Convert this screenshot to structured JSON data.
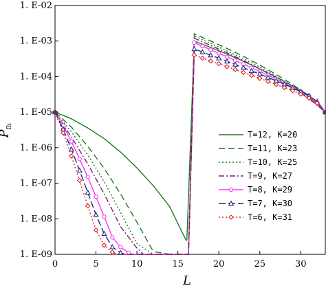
{
  "chart_data": {
    "type": "line",
    "title": "",
    "xlabel": "L",
    "ylabel": "P",
    "ylabel_sub": "fh",
    "xlim": [
      0,
      33
    ],
    "ylim": [
      1e-09,
      0.01
    ],
    "yscale": "log",
    "x_ticks": [
      "0",
      "5",
      "10",
      "15",
      "20",
      "25",
      "30"
    ],
    "y_ticks": [
      "1. E-09",
      "1. E-08",
      "1. E-07",
      "1. E-06",
      "1. E-05",
      "1. E-04",
      "1. E-03",
      "1. E-02"
    ],
    "grid": false,
    "legend_position": "right",
    "series": [
      {
        "name": "T=12, K=20",
        "color": "#1a7a1a",
        "dash": "solid",
        "marker": "none",
        "x": [
          0,
          2,
          4,
          6,
          8,
          10,
          12,
          14,
          16,
          16.1,
          17,
          19,
          21,
          23,
          25,
          27,
          29,
          31,
          33
        ],
        "y": [
          1e-05,
          6.5e-06,
          3.6e-06,
          1.8e-06,
          7.5e-07,
          2.7e-07,
          8.5e-08,
          2.2e-08,
          2.5e-09,
          2.5e-09,
          0.001,
          0.00066,
          0.00043,
          0.00027,
          0.000165,
          9.6e-05,
          5.5e-05,
          3e-05,
          1e-05
        ]
      },
      {
        "name": "T=11, K=23",
        "color": "#1a7a1a",
        "dash": "long",
        "marker": "none",
        "x": [
          0,
          2,
          4,
          6,
          8,
          10,
          12,
          14,
          16.3,
          16.3,
          17,
          19,
          21,
          23,
          25,
          27,
          29,
          31,
          33
        ],
        "y": [
          1e-05,
          3.8e-06,
          1.1e-06,
          2.6e-07,
          5e-08,
          8e-09,
          1.2e-09,
          1e-09,
          1e-09,
          1e-09,
          0.0016,
          0.001,
          0.00062,
          0.00037,
          0.00021,
          0.000115,
          6e-05,
          2.9e-05,
          1e-05
        ]
      },
      {
        "name": "T=10, K=25",
        "color": "#1a7a1a",
        "dash": "dotted",
        "marker": "none",
        "x": [
          0,
          2,
          4,
          6,
          8,
          10,
          12,
          14,
          16.3,
          16.3,
          17,
          19,
          21,
          23,
          25,
          27,
          29,
          31,
          33
        ],
        "y": [
          1e-05,
          2.8e-06,
          6.3e-07,
          1.1e-07,
          1.5e-08,
          2e-09,
          1e-09,
          1e-09,
          1e-09,
          1e-09,
          0.0014,
          0.00086,
          0.00053,
          0.00032,
          0.000185,
          0.000102,
          5.4e-05,
          2.6e-05,
          1e-05
        ]
      },
      {
        "name": "T=9, K=27",
        "color": "#7a1a7a",
        "dash": "dashdot",
        "marker": "none",
        "x": [
          0,
          2,
          4,
          6,
          8,
          10,
          10.8,
          16.3,
          16.3,
          17,
          19,
          21,
          23,
          25,
          27,
          29,
          31,
          33
        ],
        "y": [
          1e-05,
          2e-06,
          3.5e-07,
          5e-08,
          6e-09,
          1.5e-09,
          1e-09,
          1e-09,
          1e-09,
          0.0012,
          0.00075,
          0.00047,
          0.000285,
          0.000165,
          9.3e-05,
          5e-05,
          2.4e-05,
          1e-05
        ]
      },
      {
        "name": "T=8, K=29",
        "color": "#ff33ff",
        "dash": "solid",
        "marker": "circle",
        "x": [
          0,
          1,
          2,
          3,
          4,
          5,
          6,
          7,
          8,
          9,
          9.4,
          16.3,
          16.3,
          17,
          18,
          19,
          20,
          21,
          22,
          23,
          24,
          25,
          26,
          27,
          28,
          29,
          30,
          31,
          32,
          33
        ],
        "y": [
          1e-05,
          4.2e-06,
          1.5e-06,
          4.8e-07,
          1.5e-07,
          4.2e-08,
          1.15e-08,
          3e-09,
          1.6e-09,
          1.1e-09,
          1e-09,
          1e-09,
          1e-09,
          0.0009,
          0.00072,
          0.00057,
          0.00045,
          0.00036,
          0.000285,
          0.000225,
          0.000175,
          0.00014,
          0.00011,
          8.5e-05,
          6.5e-05,
          5e-05,
          3.8e-05,
          2.85e-05,
          1.8e-05,
          1e-05
        ]
      },
      {
        "name": "T=7, K=30",
        "color": "#1a2a80",
        "dash": "longdash",
        "marker": "triangle",
        "x": [
          0,
          1,
          2,
          3,
          4,
          5,
          6,
          7,
          8,
          8.6,
          16.3,
          16.3,
          17,
          18,
          19,
          20,
          21,
          22,
          23,
          24,
          25,
          26,
          27,
          28,
          29,
          30,
          31,
          32,
          33
        ],
        "y": [
          1e-05,
          3.3e-06,
          9e-07,
          2.3e-07,
          5.5e-08,
          1.3e-08,
          3.8e-09,
          1.6e-09,
          1.1e-09,
          1e-09,
          1e-09,
          1e-09,
          0.0006,
          0.00049,
          0.0004,
          0.00033,
          0.00027,
          0.00022,
          0.000178,
          0.000145,
          0.000118,
          9.5e-05,
          7.6e-05,
          6.1e-05,
          4.8e-05,
          3.8e-05,
          2.9e-05,
          2e-05,
          1e-05
        ]
      },
      {
        "name": "T=6, K=31",
        "color": "#e02020",
        "dash": "dotted",
        "marker": "diamond",
        "x": [
          0,
          1,
          2,
          3,
          4,
          5,
          6,
          7,
          7.7,
          16.3,
          16.3,
          17,
          18,
          19,
          20,
          21,
          22,
          23,
          24,
          25,
          26,
          27,
          28,
          29,
          30,
          31,
          32,
          33
        ],
        "y": [
          1e-05,
          2.6e-06,
          5.8e-07,
          1.2e-07,
          2.3e-08,
          4.8e-09,
          1.8e-09,
          1.15e-09,
          1e-09,
          1e-09,
          1e-09,
          0.0004,
          0.00033,
          0.000275,
          0.00023,
          0.00019,
          0.000158,
          0.00013,
          0.000108,
          8.9e-05,
          7.3e-05,
          6e-05,
          4.9e-05,
          4e-05,
          3.2e-05,
          2.5e-05,
          1.8e-05,
          1e-05
        ]
      }
    ]
  }
}
